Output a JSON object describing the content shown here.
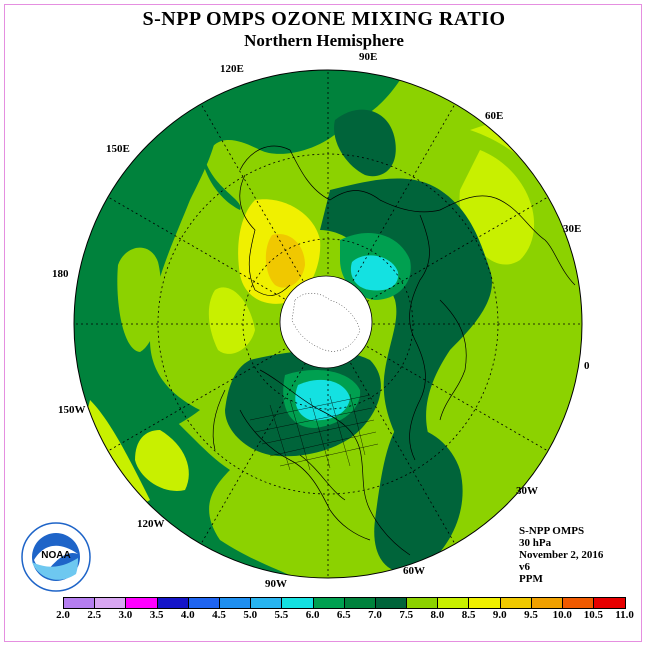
{
  "header": {
    "title": "S-NPP OMPS OZONE MIXING RATIO",
    "subtitle": "Northern Hemisphere"
  },
  "longitude_labels": [
    "90E",
    "60E",
    "30E",
    "0",
    "30W",
    "60W",
    "90W",
    "120W",
    "150W",
    "180",
    "150E",
    "120E"
  ],
  "info": {
    "instrument": "S-NPP OMPS",
    "level": "30 hPa",
    "date": "November 2, 2016",
    "version": "v6",
    "units": "PPM"
  },
  "logo": {
    "text": "NOAA"
  },
  "colorbar": {
    "ticks": [
      "2.0",
      "2.5",
      "3.0",
      "3.5",
      "4.0",
      "4.5",
      "5.0",
      "5.5",
      "6.0",
      "6.5",
      "7.0",
      "7.5",
      "8.0",
      "8.5",
      "9.0",
      "9.5",
      "10.0",
      "10.5",
      "11.0"
    ],
    "colors": [
      "#b57ef0",
      "#d8a6f2",
      "#ff00ff",
      "#1515c8",
      "#1e64f0",
      "#1e8ff0",
      "#28b4f0",
      "#14e1e1",
      "#00a050",
      "#00823c",
      "#00643a",
      "#8cd200",
      "#c8f000",
      "#f0f000",
      "#f0c800",
      "#f0a000",
      "#f05a00",
      "#e60000",
      "#8c5032"
    ]
  },
  "map_colors": {
    "yellowgreen_8": "#c8f000",
    "green_75": "#8cd200",
    "green_7": "#00643a",
    "green_65": "#00823c",
    "green_6": "#00a050",
    "cyan_55": "#14e1e1",
    "blue_5": "#28b4f0",
    "yellow_85": "#f0f000",
    "orange_9": "#f0c800"
  }
}
